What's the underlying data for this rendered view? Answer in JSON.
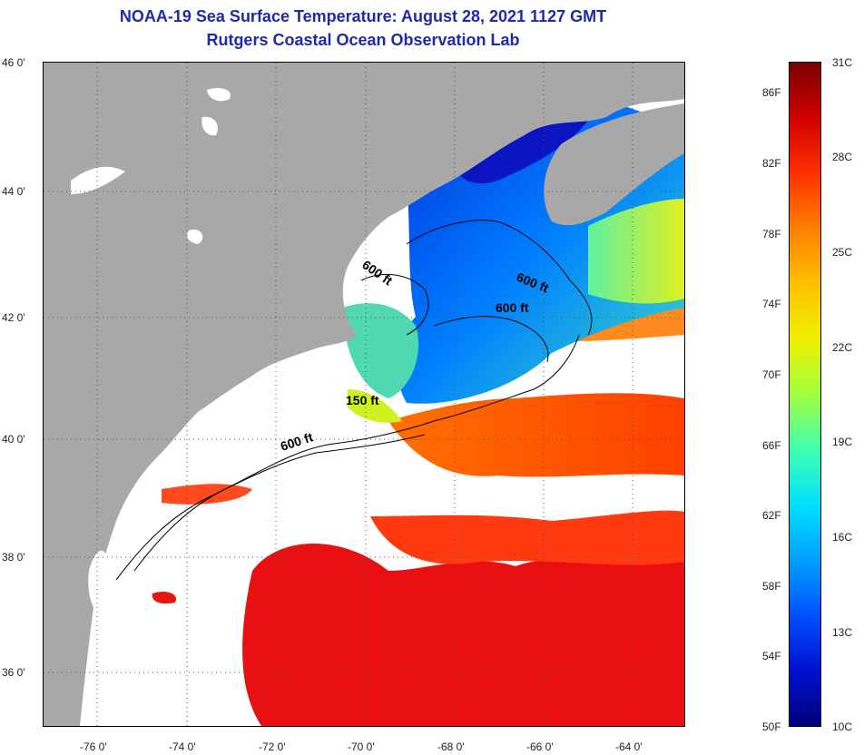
{
  "header": {
    "title": "NOAA-19 Sea Surface Temperature:  August 28, 2021 1127 GMT",
    "subtitle": "Rutgers Coastal Ocean Observation Lab"
  },
  "map": {
    "lat_ticks": [
      "46 0'",
      "44 0'",
      "42 0'",
      "40 0'",
      "38 0'",
      "36 0'"
    ],
    "lon_ticks": [
      "-76 0'",
      "-74 0'",
      "-72 0'",
      "-70 0'",
      "-68 0'",
      "-66 0'",
      "-64 0'"
    ],
    "contour_labels": [
      "600 ft",
      "600 ft",
      "600 ft",
      "150 ft",
      "600 ft"
    ],
    "colors": {
      "land": "#a8a8a8",
      "cloud": "#ffffff",
      "gridline": "#555555"
    }
  },
  "colorbar": {
    "fahrenheit_labels": [
      "86F",
      "82F",
      "78F",
      "74F",
      "70F",
      "66F",
      "62F",
      "58F",
      "54F",
      "50F"
    ],
    "celsius_labels": [
      "31C",
      "28C",
      "25C",
      "22C",
      "19C",
      "16C",
      "13C",
      "10C"
    ],
    "gradient": [
      "#7a0000",
      "#d00000",
      "#ff3000",
      "#ff8000",
      "#ffc000",
      "#f0f000",
      "#a0ff40",
      "#40ffb0",
      "#00e0ff",
      "#00a0ff",
      "#0050ff",
      "#0010d0",
      "#00007a"
    ]
  }
}
